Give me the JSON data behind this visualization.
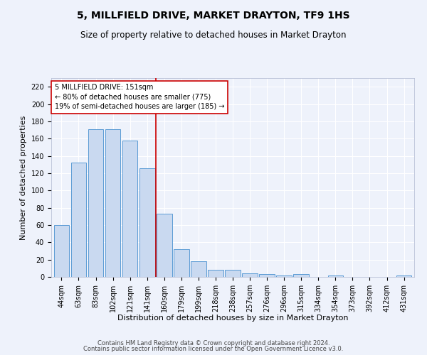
{
  "title": "5, MILLFIELD DRIVE, MARKET DRAYTON, TF9 1HS",
  "subtitle": "Size of property relative to detached houses in Market Drayton",
  "xlabel": "Distribution of detached houses by size in Market Drayton",
  "ylabel": "Number of detached properties",
  "footer1": "Contains HM Land Registry data © Crown copyright and database right 2024.",
  "footer2": "Contains public sector information licensed under the Open Government Licence v3.0.",
  "categories": [
    "44sqm",
    "63sqm",
    "83sqm",
    "102sqm",
    "121sqm",
    "141sqm",
    "160sqm",
    "179sqm",
    "199sqm",
    "218sqm",
    "238sqm",
    "257sqm",
    "276sqm",
    "296sqm",
    "315sqm",
    "334sqm",
    "354sqm",
    "373sqm",
    "392sqm",
    "412sqm",
    "431sqm"
  ],
  "bar_values": [
    60,
    132,
    171,
    171,
    158,
    126,
    73,
    32,
    18,
    8,
    8,
    4,
    3,
    2,
    3,
    0,
    2,
    0,
    0,
    0,
    2
  ],
  "bar_color": "#c9d9f0",
  "bar_edge_color": "#5b9bd5",
  "ylim": [
    0,
    230
  ],
  "yticks": [
    0,
    20,
    40,
    60,
    80,
    100,
    120,
    140,
    160,
    180,
    200,
    220
  ],
  "red_line_x": 5.5,
  "red_line_color": "#cc0000",
  "annotation_line1": "5 MILLFIELD DRIVE: 151sqm",
  "annotation_line2": "← 80% of detached houses are smaller (775)",
  "annotation_line3": "19% of semi-detached houses are larger (185) →",
  "annotation_box_color": "#ffffff",
  "annotation_box_edge": "#cc0000",
  "background_color": "#eef2fb",
  "grid_color": "#ffffff",
  "title_fontsize": 10,
  "subtitle_fontsize": 8.5,
  "axis_label_fontsize": 8,
  "tick_fontsize": 7,
  "annotation_fontsize": 7,
  "footer_fontsize": 6
}
